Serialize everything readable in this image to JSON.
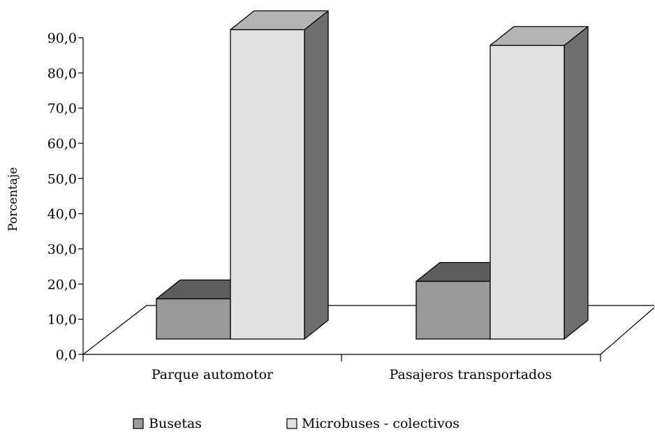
{
  "chart_data": {
    "type": "bar",
    "title": "",
    "xlabel": "",
    "ylabel": "Porcentaje",
    "ylim": [
      0,
      90
    ],
    "yticks": [
      "0,0",
      "10,0",
      "20,0",
      "30,0",
      "40,0",
      "50,0",
      "60,0",
      "70,0",
      "80,0",
      "90,0"
    ],
    "categories": [
      "Parque automotor",
      "Pasajeros transportados"
    ],
    "series": [
      {
        "name": "Busetas",
        "values": [
          11.5,
          16.5
        ]
      },
      {
        "name": "Microbuses - colectivos",
        "values": [
          88.5,
          84.0
        ]
      }
    ],
    "three_d": true,
    "grid": false,
    "legend_position": "bottom",
    "colors": {
      "Busetas": "#9a9a9a",
      "Microbuses - colectivos": "#e2e2e2",
      "bar_side": "#6e6e6e",
      "bar_top": "#b4b4b4",
      "outline": "#000000"
    }
  }
}
